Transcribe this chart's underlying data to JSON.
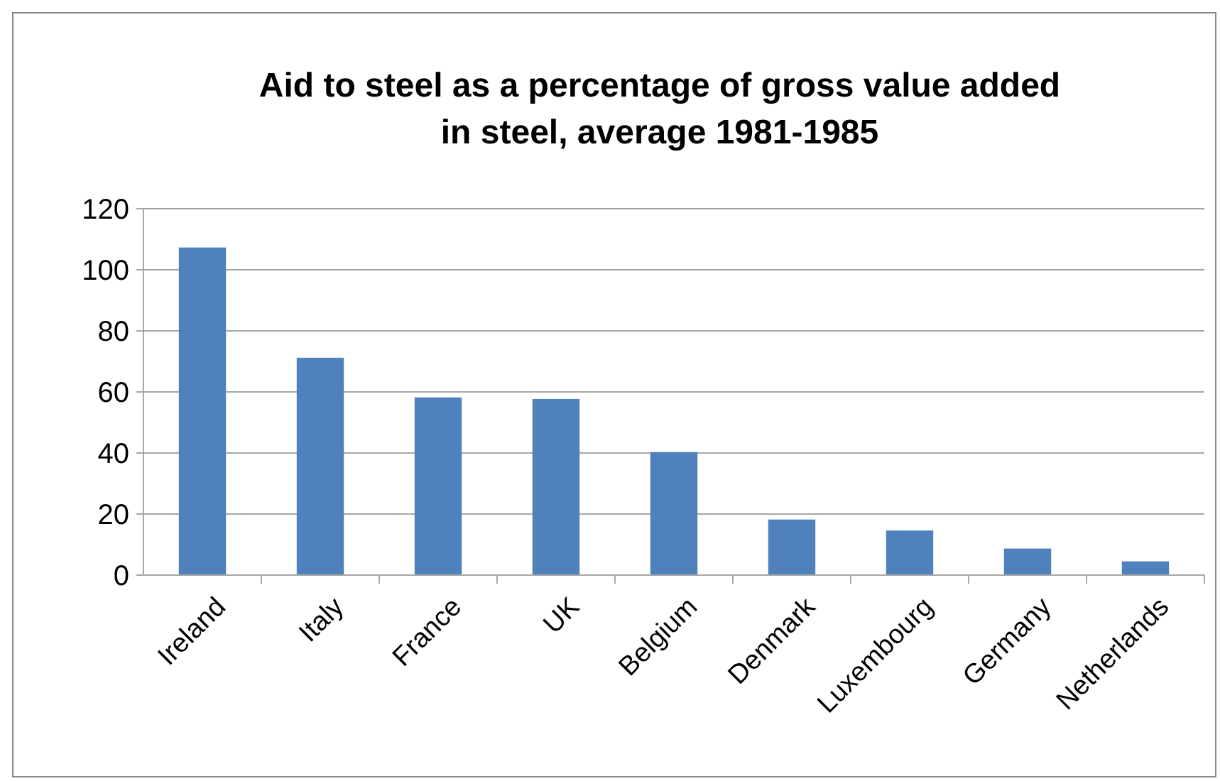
{
  "chart_data": {
    "type": "bar",
    "title": "Aid to steel as a percentage of gross value added\nin steel, average 1981-1985",
    "categories": [
      "Ireland",
      "Italy",
      "France",
      "UK",
      "Belgium",
      "Denmark",
      "Luxembourg",
      "Germany",
      "Netherlands"
    ],
    "values": [
      107.3,
      71.2,
      58.2,
      57.7,
      40.3,
      18.2,
      14.6,
      8.7,
      4.5
    ],
    "color": "#4f81bd",
    "ylim": [
      0,
      120
    ],
    "yticks": [
      0,
      20,
      40,
      60,
      80,
      100,
      120
    ],
    "grid": "y"
  }
}
